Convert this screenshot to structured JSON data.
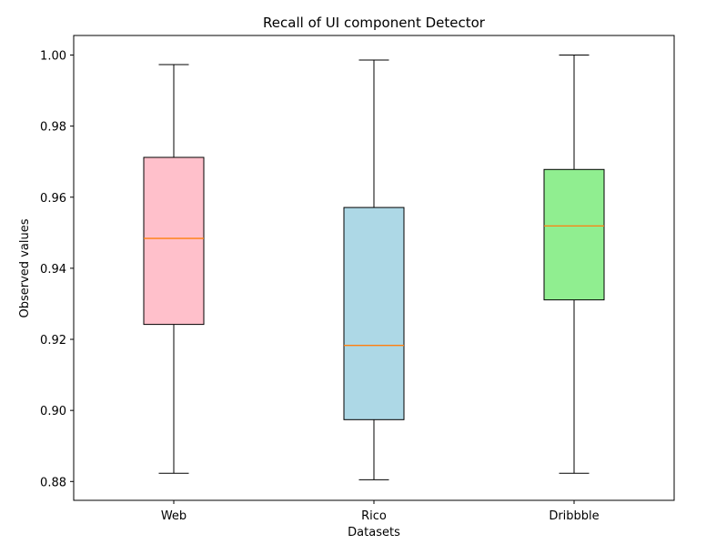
{
  "chart_data": {
    "type": "box",
    "title": "Recall of UI component Detector",
    "xlabel": "Datasets",
    "ylabel": "Observed values",
    "categories": [
      "Web",
      "Rico",
      "Dribbble"
    ],
    "ylim": [
      0.8747,
      1.0055
    ],
    "yticks": [
      0.88,
      0.9,
      0.92,
      0.94,
      0.96,
      0.98,
      1.0
    ],
    "ytick_labels": [
      "0.88",
      "0.90",
      "0.92",
      "0.94",
      "0.96",
      "0.98",
      "1.00"
    ],
    "boxes": [
      {
        "category": "Web",
        "whisker_low": 0.8823,
        "q1": 0.9242,
        "median": 0.9484,
        "q3": 0.9712,
        "whisker_high": 0.9973,
        "color": "#ffc0cb"
      },
      {
        "category": "Rico",
        "whisker_low": 0.8805,
        "q1": 0.8974,
        "median": 0.9183,
        "q3": 0.9571,
        "whisker_high": 0.9986,
        "color": "#add8e6"
      },
      {
        "category": "Dribbble",
        "whisker_low": 0.8823,
        "q1": 0.9311,
        "median": 0.9519,
        "q3": 0.9678,
        "whisker_high": 1.0,
        "color": "#90ee90"
      }
    ],
    "median_color": "#ff7f0e",
    "grid": false,
    "legend": "none"
  }
}
